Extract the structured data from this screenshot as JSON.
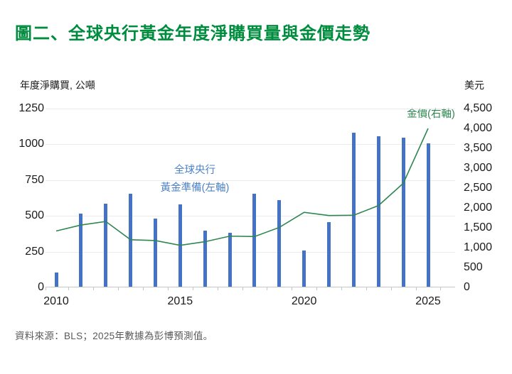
{
  "title": "圖二、全球央行黃金年度淨購買量與金價走勢",
  "left_axis_title": "年度淨購買, 公噸",
  "right_axis_title": "美元",
  "annotations": {
    "bars_label_line1": "全球央行",
    "bars_label_line2": "黃金準備(左軸)",
    "line_label": "金價(右軸)"
  },
  "footer": "資料來源：BLS；2025年數據為彭博預測值。",
  "colors": {
    "title_green": "#008C3E",
    "line_green": "#2E8751",
    "bar_blue": "#4472C4",
    "bars_label_blue": "#4E82C6",
    "axis_text": "#1A1A1A",
    "source_text": "#595959"
  },
  "chart_data": {
    "type": "bar",
    "subtype": "combo bar+line, dual axis",
    "title": "全球央行黃金年度淨購買量與金價走勢",
    "categories": [
      "2010",
      "2011",
      "2012",
      "2013",
      "2014",
      "2015",
      "2016",
      "2017",
      "2018",
      "2019",
      "2020",
      "2021",
      "2022",
      "2023",
      "2024",
      "2025"
    ],
    "series": [
      {
        "name": "全球央行黃金準備(左軸)",
        "type": "bar",
        "axis": "left",
        "unit": "公噸",
        "values": [
          105,
          515,
          585,
          655,
          480,
          580,
          395,
          380,
          655,
          610,
          260,
          455,
          1080,
          1055,
          1045,
          1005
        ]
      },
      {
        "name": "金價(右軸)",
        "type": "line",
        "axis": "right",
        "unit": "美元",
        "values": [
          1420,
          1570,
          1660,
          1200,
          1180,
          1060,
          1150,
          1290,
          1280,
          1510,
          1890,
          1810,
          1815,
          2060,
          2620,
          4000
        ]
      }
    ],
    "left_axis": {
      "title": "年度淨購買, 公噸",
      "min": 0,
      "max": 1250,
      "ticks": [
        0,
        250,
        500,
        750,
        1000,
        1250
      ]
    },
    "right_axis": {
      "title": "美元",
      "min": 0,
      "max": 4500,
      "ticks": [
        0,
        500,
        1000,
        1500,
        2000,
        2500,
        3000,
        3500,
        4000,
        4500
      ]
    },
    "x_axis": {
      "labeled_ticks": [
        "2010",
        "2015",
        "2020",
        "2025"
      ]
    },
    "grid": "horizontal gridlines on left-axis intervals",
    "legend": "inline text annotations (no legend box)",
    "note_2025": "2025年數據為彭博預測值"
  }
}
